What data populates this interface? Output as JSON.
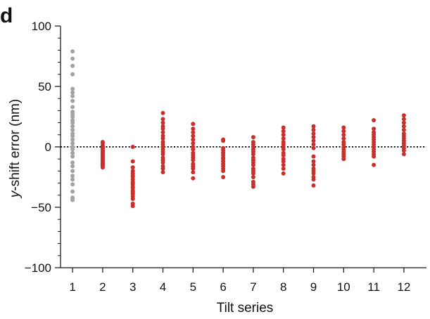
{
  "panel_label": "d",
  "chart_data": {
    "type": "scatter",
    "xlabel": "Tilt series",
    "ylabel": "y-shift error (nm)",
    "ylabel_italic_prefix": "y",
    "ylabel_rest": "-shift error (nm)",
    "xlim": [
      0.6,
      12.75
    ],
    "ylim": [
      -100,
      100
    ],
    "x_ticks": [
      1,
      2,
      3,
      4,
      5,
      6,
      7,
      8,
      9,
      10,
      11,
      12
    ],
    "y_ticks": [
      {
        "value": 100,
        "label": "100"
      },
      {
        "value": 50,
        "label": "50"
      },
      {
        "value": 0,
        "label": "0"
      },
      {
        "value": -50,
        "label": "−50"
      },
      {
        "value": -100,
        "label": "−100"
      }
    ],
    "y_minor_step": 10,
    "reference_line": {
      "y": 0,
      "style": "dotted"
    },
    "colors": {
      "reference": "#a3a3a3",
      "corrected": "#c8302b"
    },
    "series": [
      {
        "x": 1,
        "color_key": "reference",
        "y": [
          79,
          73,
          67,
          60,
          48,
          45,
          42,
          38,
          33,
          29,
          27,
          25,
          22,
          20,
          17,
          14,
          11,
          9,
          6,
          3,
          0,
          -2,
          -5,
          -8,
          -13,
          -16,
          -20,
          -24,
          -27,
          -31,
          -37,
          -42,
          -44
        ]
      },
      {
        "x": 2,
        "color_key": "corrected",
        "y": [
          4,
          3,
          1,
          0,
          -1,
          -2,
          -3,
          -4,
          -5,
          -6,
          -7,
          -8,
          -9,
          -10,
          -11,
          -12,
          -13,
          -14,
          -15,
          -16,
          -17
        ]
      },
      {
        "x": 3,
        "color_key": "corrected",
        "y": [
          0,
          -12,
          -17,
          -20,
          -22,
          -24,
          -25,
          -27,
          -29,
          -30,
          -31,
          -33,
          -34,
          -36,
          -37,
          -38,
          -39,
          -41,
          -43,
          -47,
          -49
        ]
      },
      {
        "x": 4,
        "color_key": "corrected",
        "y": [
          28,
          23,
          20,
          17,
          15,
          12,
          9,
          7,
          4,
          2,
          0,
          -2,
          -4,
          -6,
          -9,
          -11,
          -13,
          -16,
          -18,
          -21
        ]
      },
      {
        "x": 5,
        "color_key": "corrected",
        "y": [
          19,
          15,
          12,
          9,
          6,
          3,
          0,
          -2,
          -5,
          -7,
          -9,
          -11,
          -14,
          -16,
          -18,
          -21,
          -26
        ]
      },
      {
        "x": 6,
        "color_key": "corrected",
        "y": [
          6,
          5,
          -1,
          -3,
          -5,
          -7,
          -9,
          -10,
          -12,
          -14,
          -16,
          -18,
          -20,
          -25
        ]
      },
      {
        "x": 7,
        "color_key": "corrected",
        "y": [
          8,
          4,
          2,
          0,
          -2,
          -4,
          -6,
          -9,
          -11,
          -13,
          -15,
          -18,
          -20,
          -22,
          -25,
          -29,
          -31,
          -33
        ]
      },
      {
        "x": 8,
        "color_key": "corrected",
        "y": [
          16,
          13,
          10,
          7,
          4,
          2,
          0,
          -2,
          -5,
          -7,
          -10,
          -12,
          -15,
          -18,
          -22
        ]
      },
      {
        "x": 9,
        "color_key": "corrected",
        "y": [
          17,
          14,
          11,
          8,
          5,
          2,
          -1,
          -8,
          -12,
          -15,
          -18,
          -20,
          -22,
          -25,
          -27,
          -32
        ]
      },
      {
        "x": 10,
        "color_key": "corrected",
        "y": [
          16,
          13,
          10,
          7,
          4,
          2,
          0,
          -2,
          -4,
          -6,
          -8,
          -10
        ]
      },
      {
        "x": 11,
        "color_key": "corrected",
        "y": [
          22,
          15,
          12,
          10,
          8,
          6,
          4,
          2,
          0,
          -2,
          -4,
          -6,
          -8,
          -15
        ]
      },
      {
        "x": 12,
        "color_key": "corrected",
        "y": [
          26,
          23,
          20,
          17,
          14,
          11,
          9,
          7,
          5,
          3,
          1,
          -1,
          -3,
          -6
        ]
      }
    ]
  }
}
